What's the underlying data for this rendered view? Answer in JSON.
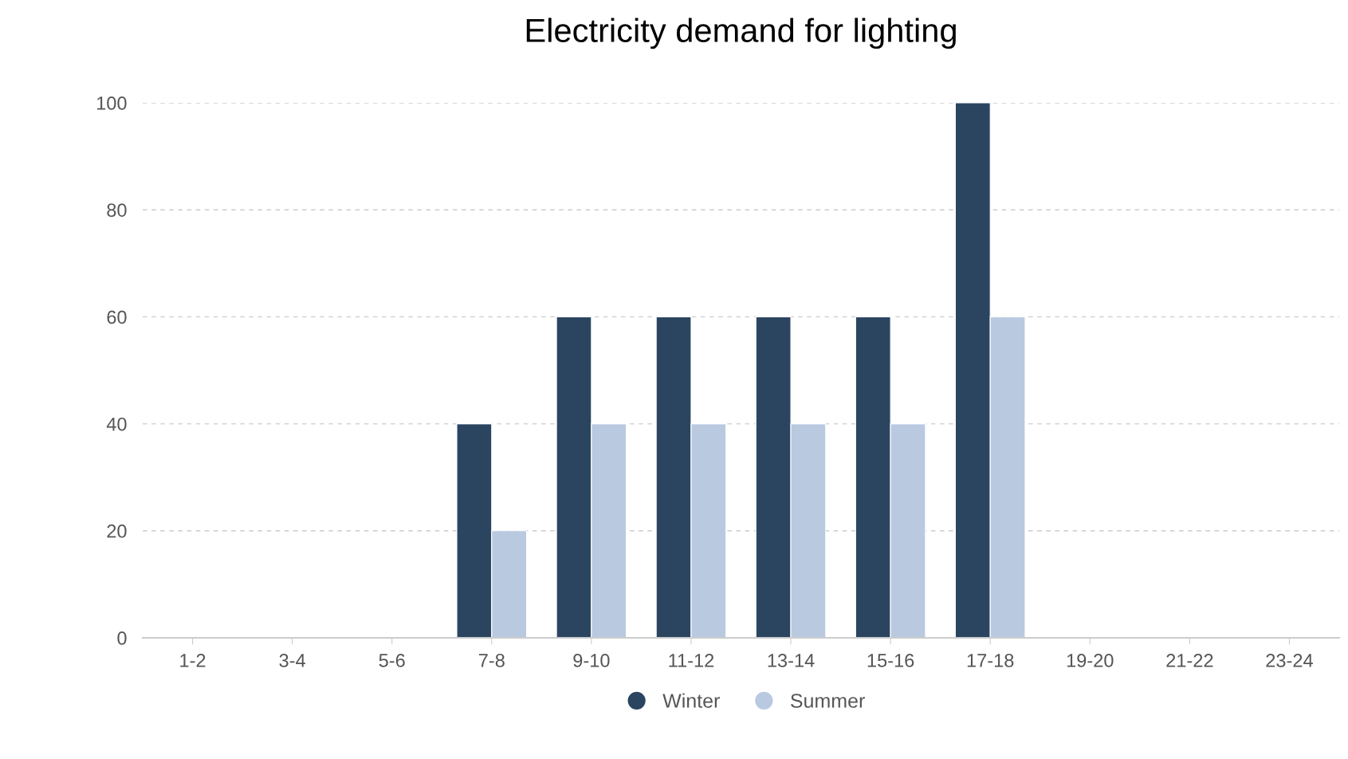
{
  "chart_data": {
    "type": "bar",
    "title": "Electricity demand for lighting",
    "categories": [
      "1-2",
      "3-4",
      "5-6",
      "7-8",
      "9-10",
      "11-12",
      "13-14",
      "15-16",
      "17-18",
      "19-20",
      "21-22",
      "23-24"
    ],
    "series": [
      {
        "name": "Winter",
        "color": "#2b4561",
        "values": [
          0,
          0,
          0,
          40,
          60,
          60,
          60,
          60,
          100,
          0,
          0,
          0
        ]
      },
      {
        "name": "Summer",
        "color": "#b9c9e0",
        "values": [
          0,
          0,
          0,
          20,
          40,
          40,
          40,
          40,
          60,
          0,
          0,
          0
        ]
      }
    ],
    "ylim": [
      0,
      100
    ],
    "yticks": [
      0,
      20,
      40,
      60,
      80,
      100
    ],
    "grid": "y",
    "legend": "bottom"
  }
}
